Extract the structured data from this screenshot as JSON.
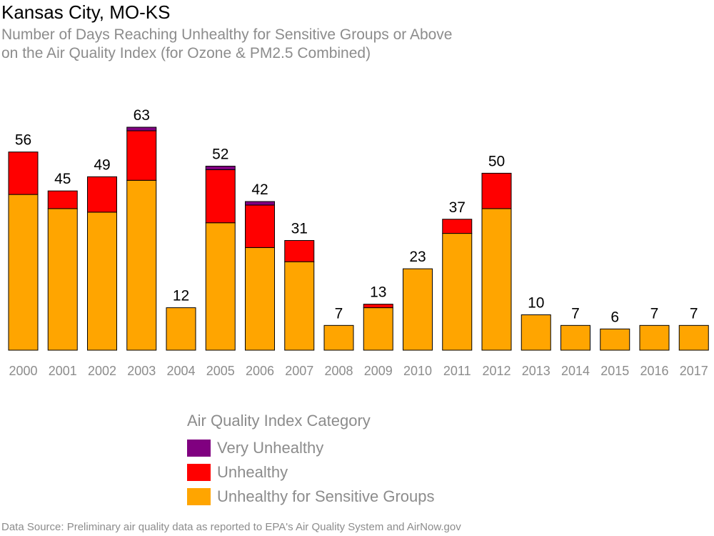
{
  "header": {
    "title": "Kansas City, MO-KS",
    "subtitle_lines": [
      "Number of Days Reaching Unhealthy for Sensitive Groups or Above",
      "on the Air Quality Index (for Ozone & PM2.5 Combined)"
    ]
  },
  "footer": {
    "source": "Data Source: Preliminary air quality data as reported to EPA's Air Quality System and AirNow.gov"
  },
  "legend": {
    "title": "Air Quality Index Category",
    "items": [
      {
        "label": "Very Unhealthy",
        "color": "#800080"
      },
      {
        "label": "Unhealthy",
        "color": "#ff0000"
      },
      {
        "label": "Unhealthy for Sensitive Groups",
        "color": "#ffa500"
      }
    ]
  },
  "chart_data": {
    "type": "bar",
    "stacked": true,
    "categories": [
      "2000",
      "2001",
      "2002",
      "2003",
      "2004",
      "2005",
      "2006",
      "2007",
      "2008",
      "2009",
      "2010",
      "2011",
      "2012",
      "2013",
      "2014",
      "2015",
      "2016",
      "2017"
    ],
    "series": [
      {
        "name": "Unhealthy for Sensitive Groups",
        "color": "#ffa500",
        "values": [
          44,
          40,
          39,
          48,
          12,
          36,
          29,
          25,
          7,
          12,
          23,
          33,
          40,
          10,
          7,
          6,
          7,
          7
        ]
      },
      {
        "name": "Unhealthy",
        "color": "#ff0000",
        "values": [
          12,
          5,
          10,
          14,
          0,
          15,
          12,
          6,
          0,
          1,
          0,
          4,
          10,
          0,
          0,
          0,
          0,
          0
        ]
      },
      {
        "name": "Very Unhealthy",
        "color": "#800080",
        "values": [
          0,
          0,
          0,
          1,
          0,
          1,
          1,
          0,
          0,
          0,
          0,
          0,
          0,
          0,
          0,
          0,
          0,
          0
        ]
      }
    ],
    "totals": [
      56,
      45,
      49,
      63,
      12,
      52,
      42,
      31,
      7,
      13,
      23,
      37,
      50,
      10,
      7,
      6,
      7,
      7
    ],
    "ylim": [
      0,
      63
    ],
    "grid": false,
    "legend_position": "bottom"
  }
}
